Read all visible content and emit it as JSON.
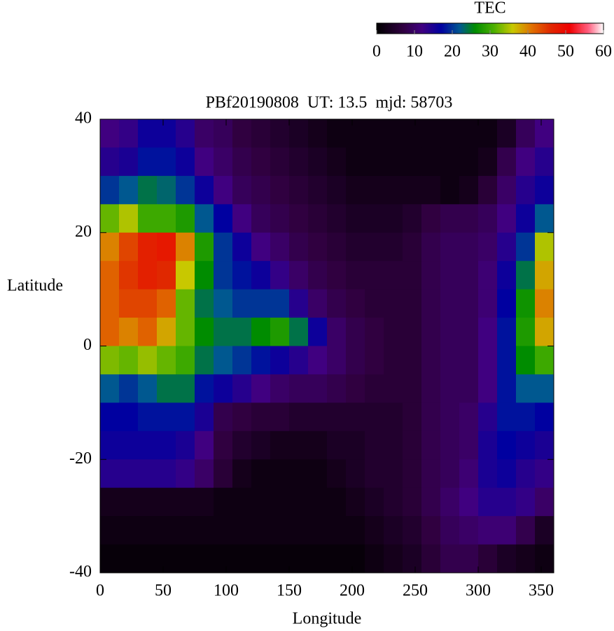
{
  "chart_data": {
    "type": "heatmap",
    "title": "PBf20190808  UT: 13.5  mjd: 58703",
    "x_label": "Longitude",
    "y_label": "Latitude",
    "colorbar_label": "TEC",
    "xlim": [
      0,
      360
    ],
    "ylim": [
      -40,
      40
    ],
    "xticks": [
      0,
      50,
      100,
      150,
      200,
      250,
      300,
      350
    ],
    "yticks": [
      -40,
      -20,
      0,
      20,
      40
    ],
    "clim": [
      0,
      60
    ],
    "cticks": [
      0,
      10,
      20,
      30,
      40,
      50,
      60
    ],
    "colorscale": [
      {
        "value": 0,
        "color": "#000000"
      },
      {
        "value": 7,
        "color": "#300040"
      },
      {
        "value": 12,
        "color": "#400080"
      },
      {
        "value": 17,
        "color": "#0000a0"
      },
      {
        "value": 22,
        "color": "#005890"
      },
      {
        "value": 26,
        "color": "#008c00"
      },
      {
        "value": 31,
        "color": "#4cb000"
      },
      {
        "value": 36,
        "color": "#c8c800"
      },
      {
        "value": 41,
        "color": "#e07000"
      },
      {
        "value": 46,
        "color": "#e02800"
      },
      {
        "value": 51,
        "color": "#f00000"
      },
      {
        "value": 56,
        "color": "#ff6080"
      },
      {
        "value": 60,
        "color": "#ffffff"
      }
    ],
    "x": [
      7.5,
      22.5,
      37.5,
      52.5,
      67.5,
      82.5,
      97.5,
      112.5,
      127.5,
      142.5,
      157.5,
      172.5,
      187.5,
      202.5,
      217.5,
      232.5,
      247.5,
      262.5,
      277.5,
      292.5,
      307.5,
      322.5,
      337.5,
      352.5
    ],
    "y": [
      37.5,
      32.5,
      27.5,
      22.5,
      17.5,
      12.5,
      7.5,
      2.5,
      -2.5,
      -7.5,
      -12.5,
      -17.5,
      -22.5,
      -27.5,
      -32.5,
      -37.5
    ],
    "values": [
      [
        12,
        13,
        16,
        16,
        14,
        10,
        9,
        7,
        6,
        5,
        4,
        3,
        2,
        2,
        2,
        2,
        2,
        2,
        2,
        2,
        2,
        4,
        9,
        12
      ],
      [
        14,
        15,
        18,
        18,
        16,
        12,
        10,
        8,
        7,
        6,
        5,
        4,
        3,
        2,
        2,
        2,
        2,
        2,
        2,
        2,
        3,
        8,
        12,
        14
      ],
      [
        20,
        22,
        24,
        23,
        20,
        16,
        12,
        9,
        8,
        7,
        6,
        5,
        4,
        3,
        3,
        3,
        3,
        3,
        2,
        3,
        6,
        10,
        14,
        16
      ],
      [
        32,
        35,
        30,
        30,
        28,
        22,
        17,
        12,
        9,
        8,
        7,
        6,
        5,
        4,
        4,
        4,
        5,
        7,
        8,
        8,
        9,
        12,
        16,
        22
      ],
      [
        40,
        44,
        47,
        48,
        40,
        28,
        20,
        16,
        12,
        10,
        8,
        7,
        6,
        5,
        5,
        5,
        6,
        8,
        9,
        9,
        10,
        14,
        20,
        35
      ],
      [
        42,
        45,
        47,
        46,
        36,
        26,
        20,
        18,
        16,
        13,
        10,
        8,
        7,
        6,
        6,
        6,
        6,
        8,
        9,
        9,
        11,
        16,
        24,
        38
      ],
      [
        42,
        44,
        44,
        42,
        32,
        24,
        22,
        20,
        20,
        20,
        14,
        10,
        8,
        7,
        6,
        6,
        6,
        8,
        9,
        9,
        11,
        17,
        27,
        40
      ],
      [
        42,
        40,
        42,
        38,
        32,
        26,
        24,
        24,
        26,
        28,
        24,
        16,
        10,
        8,
        7,
        6,
        6,
        8,
        9,
        9,
        12,
        18,
        28,
        38
      ],
      [
        33,
        32,
        34,
        32,
        30,
        24,
        22,
        20,
        18,
        16,
        14,
        12,
        10,
        8,
        7,
        6,
        6,
        8,
        9,
        9,
        12,
        18,
        26,
        30
      ],
      [
        22,
        20,
        22,
        24,
        24,
        18,
        16,
        14,
        12,
        10,
        9,
        9,
        8,
        7,
        6,
        6,
        6,
        8,
        9,
        9,
        12,
        18,
        22,
        22
      ],
      [
        17,
        17,
        18,
        18,
        18,
        15,
        8,
        7,
        6,
        6,
        5,
        5,
        5,
        5,
        5,
        5,
        6,
        8,
        9,
        10,
        14,
        18,
        18,
        17
      ],
      [
        16,
        16,
        16,
        16,
        15,
        12,
        7,
        5,
        4,
        3,
        3,
        3,
        4,
        4,
        5,
        5,
        6,
        8,
        9,
        10,
        15,
        17,
        16,
        15
      ],
      [
        14,
        14,
        14,
        14,
        13,
        10,
        6,
        3,
        2,
        2,
        2,
        2,
        3,
        4,
        5,
        5,
        6,
        8,
        9,
        11,
        15,
        16,
        14,
        13
      ],
      [
        3,
        3,
        3,
        3,
        3,
        3,
        2,
        2,
        2,
        2,
        2,
        2,
        2,
        3,
        4,
        5,
        6,
        8,
        10,
        12,
        14,
        14,
        13,
        10
      ],
      [
        2,
        2,
        2,
        2,
        2,
        2,
        2,
        2,
        2,
        2,
        2,
        2,
        2,
        2,
        3,
        4,
        5,
        7,
        9,
        10,
        11,
        11,
        8,
        4
      ],
      [
        1,
        1,
        1,
        1,
        1,
        1,
        1,
        1,
        1,
        1,
        1,
        1,
        1,
        1,
        2,
        3,
        4,
        6,
        8,
        8,
        6,
        4,
        3,
        2
      ]
    ]
  }
}
